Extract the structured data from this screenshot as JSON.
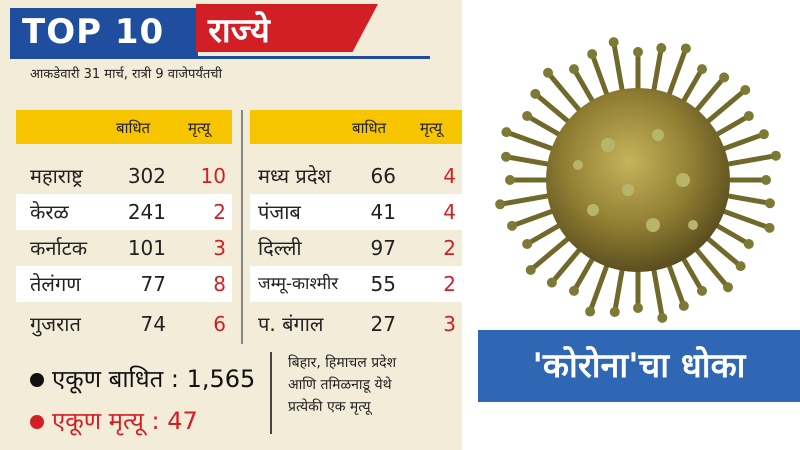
{
  "header": {
    "top": "TOP 10",
    "title": "राज्ये"
  },
  "subtitle": "आकडेवारी 31 मार्च, रात्री 9 वाजेपर्यंतची",
  "columns": {
    "affected": "बाधित",
    "deaths": "मृत्यू"
  },
  "left_rows": [
    {
      "state": "महाराष्ट्र",
      "affected": "302",
      "deaths": "10"
    },
    {
      "state": "केरळ",
      "affected": "241",
      "deaths": "2"
    },
    {
      "state": "कर्नाटक",
      "affected": "101",
      "deaths": "3"
    },
    {
      "state": "तेलंगण",
      "affected": "77",
      "deaths": "8"
    },
    {
      "state": "गुजरात",
      "affected": "74",
      "deaths": "6"
    }
  ],
  "right_rows": [
    {
      "state": "मध्य प्रदेश",
      "affected": "66",
      "deaths": "4"
    },
    {
      "state": "पंजाब",
      "affected": "41",
      "deaths": "4"
    },
    {
      "state": "दिल्ली",
      "affected": "97",
      "deaths": "2"
    },
    {
      "state": "जम्मू-काश्मीर",
      "affected": "55",
      "deaths": "2"
    },
    {
      "state": "प. बंगाल",
      "affected": "27",
      "deaths": "3"
    }
  ],
  "totals": {
    "affected": "एकूण बाधित : 1,565",
    "deaths": "एकूण मृत्यू : 47"
  },
  "note": {
    "line1": "बिहार, हिमाचल प्रदेश",
    "line2": "आणि तमिळनाडू येथे",
    "line3": "प्रत्येकी एक मृत्यू"
  },
  "banner": "'कोरोना'चा धोका",
  "colors": {
    "blue": "#1f4e9e",
    "red": "#d21f26",
    "yellow": "#f7c400",
    "banner": "#2f67b4",
    "bg": "#f3ecd9"
  }
}
